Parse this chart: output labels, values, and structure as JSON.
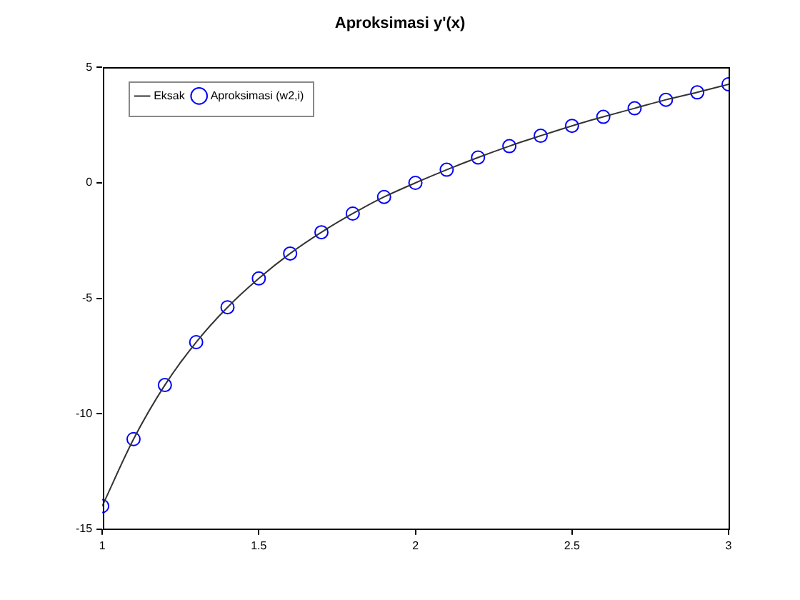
{
  "chart_data": {
    "type": "line",
    "title": "Aproksimasi y'(x)",
    "x": [
      1,
      1.1,
      1.2,
      1.3,
      1.4,
      1.5,
      1.6,
      1.7,
      1.8,
      1.9,
      2,
      2.1,
      2.2,
      2.3,
      2.4,
      2.5,
      2.6,
      2.7,
      2.8,
      2.9,
      3
    ],
    "series": [
      {
        "name": "Eksak",
        "type": "line",
        "color": "#333333",
        "marker": "none",
        "line_style": "solid",
        "values": [
          -14.0,
          -11.1,
          -8.76,
          -6.9,
          -5.39,
          -4.14,
          -3.06,
          -2.14,
          -1.33,
          -0.61,
          0,
          0.57,
          1.1,
          1.59,
          2.04,
          2.47,
          2.86,
          3.23,
          3.6,
          3.92,
          4.27
        ]
      },
      {
        "name": "Aproksimasi (w2,i)",
        "type": "scatter",
        "color": "#0000ff",
        "marker": "circle",
        "values": [
          -14.0,
          -11.1,
          -8.76,
          -6.9,
          -5.39,
          -4.14,
          -3.06,
          -2.14,
          -1.33,
          -0.61,
          0,
          0.57,
          1.1,
          1.59,
          2.04,
          2.47,
          2.86,
          3.23,
          3.6,
          3.92,
          4.27
        ]
      }
    ],
    "xlim": [
      1,
      3
    ],
    "xticks": [
      1,
      1.5,
      2,
      2.5,
      3
    ],
    "ylim": [
      -15,
      5
    ],
    "yticks": [
      -15,
      -10,
      -5,
      0,
      5
    ],
    "grid": false,
    "legend": "top left"
  }
}
